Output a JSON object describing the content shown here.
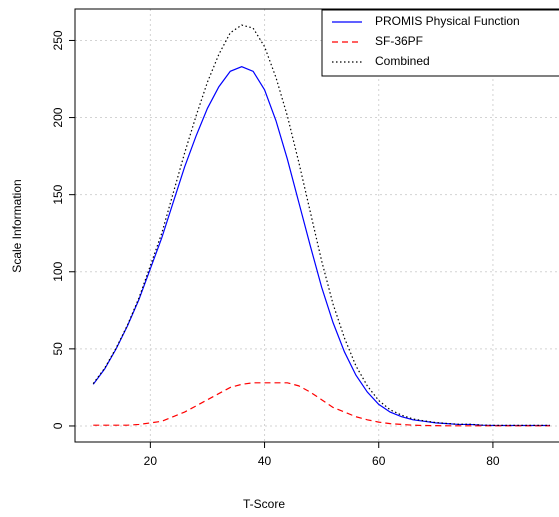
{
  "chart_data": {
    "type": "line",
    "xlabel": "T-Score",
    "ylabel": "Scale Information",
    "x": [
      10,
      12,
      14,
      16,
      18,
      20,
      22,
      24,
      26,
      28,
      30,
      32,
      34,
      36,
      38,
      40,
      42,
      44,
      46,
      48,
      50,
      52,
      54,
      56,
      58,
      60,
      62,
      64,
      66,
      68,
      70,
      72,
      74,
      76,
      78,
      80,
      82,
      84,
      86,
      88,
      90
    ],
    "series": [
      {
        "name": "PROMIS Physical Function",
        "color": "#0000ff",
        "dash": "solid",
        "values": [
          27,
          37,
          50,
          65,
          82,
          102,
          122,
          145,
          168,
          188,
          206,
          220,
          230,
          233,
          230,
          218,
          198,
          173,
          145,
          117,
          90,
          67,
          48,
          33,
          22,
          14,
          9,
          6,
          4,
          3,
          2,
          1.5,
          1,
          1,
          0.5,
          0.3,
          0.3,
          0.3,
          0.3,
          0.3,
          0.3
        ]
      },
      {
        "name": "SF-36PF",
        "color": "#ff0000",
        "dash": "dashed",
        "values": [
          0.5,
          0.5,
          0.5,
          0.5,
          1,
          2,
          3,
          6,
          9,
          13,
          17,
          21,
          25,
          27,
          28,
          28,
          28,
          28,
          26,
          22,
          17,
          12,
          9,
          6,
          4,
          2.5,
          1.5,
          1,
          0.5,
          0.3,
          0.2,
          0.1,
          0.1,
          0.1,
          0.1,
          0.1,
          0.1,
          0.1,
          0.1,
          0.1,
          0.1
        ]
      },
      {
        "name": "Combined",
        "color": "#000000",
        "dash": "dotted",
        "values": [
          27.5,
          37.5,
          50.5,
          65.5,
          83,
          104,
          125,
          151,
          177,
          201,
          223,
          241,
          255,
          260,
          258,
          246,
          226,
          201,
          171,
          139,
          107,
          79,
          57,
          39,
          26,
          16.5,
          10.5,
          7,
          4.5,
          3.3,
          2.2,
          1.6,
          1.1,
          1.1,
          0.6,
          0.4,
          0.4,
          0.4,
          0.4,
          0.4,
          0.4
        ]
      }
    ],
    "xlim": [
      6.8,
      91.4
    ],
    "ylim": [
      -10.4,
      270.4
    ],
    "xticks": [
      20,
      40,
      60,
      80
    ],
    "yticks": [
      0,
      50,
      100,
      150,
      200,
      250
    ],
    "grid": true,
    "legend": "top-right"
  }
}
